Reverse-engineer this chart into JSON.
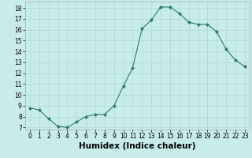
{
  "x": [
    0,
    1,
    2,
    3,
    4,
    5,
    6,
    7,
    8,
    9,
    10,
    11,
    12,
    13,
    14,
    15,
    16,
    17,
    18,
    19,
    20,
    21,
    22,
    23
  ],
  "y": [
    8.8,
    8.6,
    7.8,
    7.1,
    7.0,
    7.5,
    8.0,
    8.2,
    8.2,
    9.0,
    10.8,
    12.5,
    16.1,
    16.9,
    18.1,
    18.1,
    17.5,
    16.7,
    16.5,
    16.5,
    15.8,
    14.2,
    13.2,
    12.6
  ],
  "line_color": "#2d7a6a",
  "marker": "D",
  "marker_size": 2.0,
  "bg_color": "#c8ecea",
  "grid_color": "#aed8d4",
  "xlabel": "Humidex (Indice chaleur)",
  "xlabel_fontsize": 7.5,
  "xlim": [
    -0.5,
    23.5
  ],
  "ylim": [
    6.8,
    18.6
  ],
  "yticks": [
    7,
    8,
    9,
    10,
    11,
    12,
    13,
    14,
    15,
    16,
    17,
    18
  ],
  "xticks": [
    0,
    1,
    2,
    3,
    4,
    5,
    6,
    7,
    8,
    9,
    10,
    11,
    12,
    13,
    14,
    15,
    16,
    17,
    18,
    19,
    20,
    21,
    22,
    23
  ],
  "tick_fontsize": 5.5,
  "linewidth": 0.8
}
